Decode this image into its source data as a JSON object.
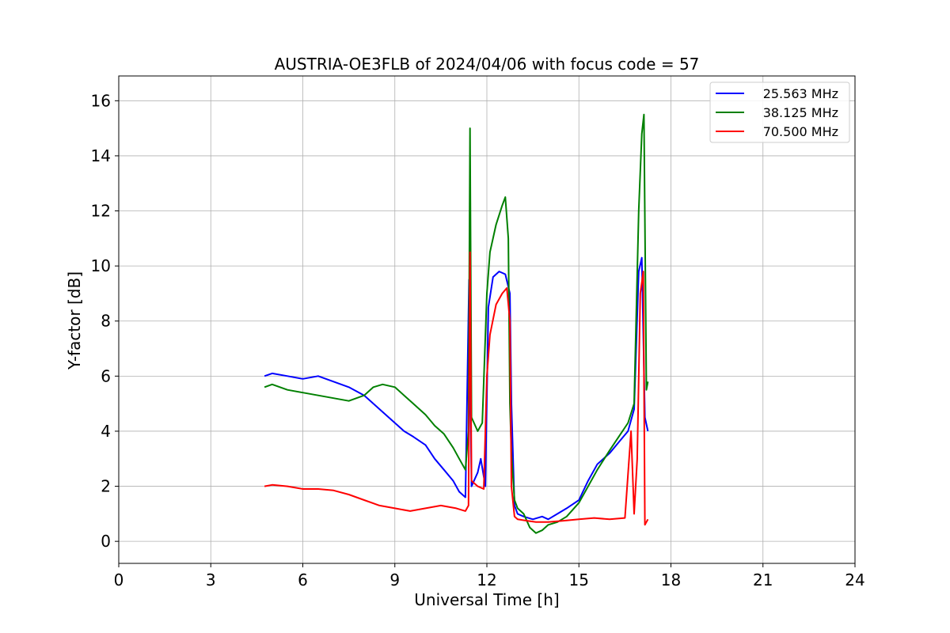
{
  "chart_data": {
    "type": "line",
    "title": "AUSTRIA-OE3FLB of 2024/04/06 with focus code = 57",
    "xlabel": "Universal Time [h]",
    "ylabel": "Y-factor [dB]",
    "xlim": [
      0,
      24
    ],
    "ylim": [
      -0.8,
      16.9
    ],
    "xticks": [
      0,
      3,
      6,
      9,
      12,
      15,
      18,
      21,
      24
    ],
    "yticks": [
      0,
      2,
      4,
      6,
      8,
      10,
      12,
      14,
      16
    ],
    "grid": true,
    "legend_position": "top-right",
    "series": [
      {
        "name": "25.563 MHz",
        "color": "#0000ff",
        "x": [
          4.75,
          5.0,
          5.5,
          6.0,
          6.5,
          7.0,
          7.5,
          8.0,
          8.3,
          8.6,
          9.0,
          9.3,
          9.6,
          10.0,
          10.3,
          10.6,
          10.9,
          11.1,
          11.3,
          11.42,
          11.5,
          11.7,
          11.8,
          11.95,
          12.05,
          12.2,
          12.4,
          12.6,
          12.75,
          12.8,
          12.9,
          13.0,
          13.2,
          13.5,
          13.8,
          14.0,
          14.3,
          14.6,
          15.0,
          15.3,
          15.6,
          16.0,
          16.3,
          16.6,
          16.8,
          16.95,
          17.05,
          17.15,
          17.25
        ],
        "y": [
          6.0,
          6.1,
          6.0,
          5.9,
          6.0,
          5.8,
          5.6,
          5.3,
          5.0,
          4.7,
          4.3,
          4.0,
          3.8,
          3.5,
          3.0,
          2.6,
          2.2,
          1.8,
          1.6,
          9.5,
          2.0,
          2.5,
          3.0,
          2.0,
          8.5,
          9.6,
          9.8,
          9.7,
          9.0,
          5.0,
          1.3,
          1.0,
          0.9,
          0.8,
          0.9,
          0.8,
          1.0,
          1.2,
          1.5,
          2.2,
          2.8,
          3.2,
          3.6,
          4.0,
          4.8,
          9.8,
          10.3,
          4.5,
          4.0
        ]
      },
      {
        "name": "38.125 MHz",
        "color": "#008000",
        "x": [
          4.75,
          5.0,
          5.5,
          6.0,
          6.5,
          7.0,
          7.5,
          8.0,
          8.3,
          8.6,
          9.0,
          9.3,
          9.6,
          10.0,
          10.3,
          10.6,
          10.9,
          11.1,
          11.3,
          11.4,
          11.45,
          11.5,
          11.7,
          11.85,
          12.0,
          12.1,
          12.3,
          12.5,
          12.6,
          12.7,
          12.75,
          12.8,
          12.9,
          13.0,
          13.2,
          13.4,
          13.6,
          13.8,
          14.0,
          14.3,
          14.6,
          15.0,
          15.3,
          15.6,
          16.0,
          16.3,
          16.6,
          16.8,
          16.95,
          17.05,
          17.12,
          17.2,
          17.25
        ],
        "y": [
          5.6,
          5.7,
          5.5,
          5.4,
          5.3,
          5.2,
          5.1,
          5.3,
          5.6,
          5.7,
          5.6,
          5.3,
          5.0,
          4.6,
          4.2,
          3.9,
          3.4,
          3.0,
          2.6,
          4.0,
          15.0,
          4.5,
          4.0,
          4.3,
          9.0,
          10.5,
          11.5,
          12.2,
          12.5,
          11.0,
          5.0,
          3.2,
          1.5,
          1.2,
          1.0,
          0.5,
          0.3,
          0.4,
          0.6,
          0.7,
          0.9,
          1.4,
          2.0,
          2.6,
          3.3,
          3.8,
          4.3,
          5.0,
          12.0,
          14.8,
          15.5,
          5.5,
          5.8
        ]
      },
      {
        "name": "70.500 MHz",
        "color": "#ff0000",
        "x": [
          4.75,
          5.0,
          5.5,
          6.0,
          6.5,
          7.0,
          7.5,
          8.0,
          8.5,
          9.0,
          9.5,
          10.0,
          10.5,
          11.0,
          11.3,
          11.4,
          11.45,
          11.5,
          11.7,
          11.9,
          12.0,
          12.1,
          12.3,
          12.5,
          12.65,
          12.75,
          12.8,
          12.9,
          13.0,
          13.3,
          13.6,
          14.0,
          14.5,
          15.0,
          15.5,
          16.0,
          16.5,
          16.7,
          16.8,
          16.9,
          17.0,
          17.1,
          17.15,
          17.2,
          17.25
        ],
        "y": [
          2.0,
          2.05,
          2.0,
          1.9,
          1.9,
          1.85,
          1.7,
          1.5,
          1.3,
          1.2,
          1.1,
          1.2,
          1.3,
          1.2,
          1.1,
          1.3,
          10.5,
          2.2,
          2.0,
          1.9,
          6.0,
          7.5,
          8.6,
          9.0,
          9.2,
          8.0,
          2.0,
          0.9,
          0.8,
          0.75,
          0.7,
          0.7,
          0.75,
          0.8,
          0.85,
          0.8,
          0.85,
          4.0,
          1.0,
          3.0,
          9.0,
          9.8,
          0.6,
          0.7,
          0.8
        ]
      }
    ]
  }
}
